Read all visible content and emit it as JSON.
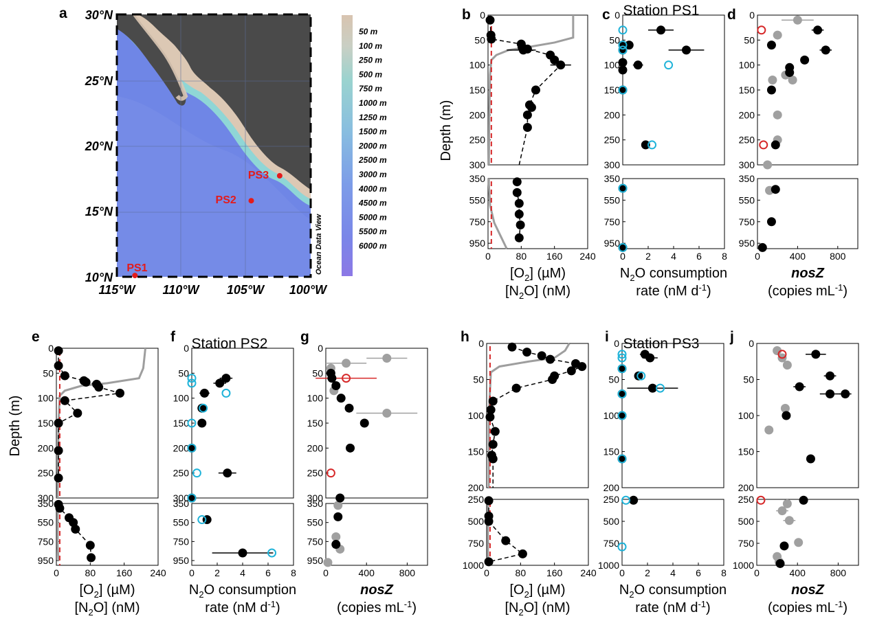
{
  "figure_labels": [
    "a",
    "b",
    "c",
    "d",
    "e",
    "f",
    "g",
    "h",
    "i",
    "j"
  ],
  "map": {
    "label": "a",
    "lat_ticks": [
      "30°N",
      "25°N",
      "20°N",
      "15°N",
      "10°N"
    ],
    "lon_ticks": [
      "115°W",
      "110°W",
      "105°W",
      "100°W"
    ],
    "watermark": "Ocean Data View",
    "stations": [
      {
        "name": "PS1",
        "lon": -113.6,
        "lat": 10.1
      },
      {
        "name": "PS2",
        "lon": -104.6,
        "lat": 15.8
      },
      {
        "name": "PS3",
        "lon": -102.4,
        "lat": 17.7
      }
    ],
    "colorbar_labels": [
      "50 m",
      "100 m",
      "250 m",
      "500 m",
      "750 m",
      "1000 m",
      "1250 m",
      "1500 m",
      "2000 m",
      "2500 m",
      "3000 m",
      "4000 m",
      "4500 m",
      "5000 m",
      "5500 m",
      "6000 m"
    ],
    "colors": {
      "land": "#4a4a4a",
      "shelf": "#dcc8b4",
      "deep": "#6f86e6",
      "mid": "#8aa4ec",
      "coast": "#8fd6d6"
    }
  },
  "stations_titles": [
    "Station PS1",
    "Station PS2",
    "Station PS3"
  ],
  "ylabel": "Depth (m)",
  "xlabels": {
    "o2": [
      "[O",
      "2",
      "] (µM)"
    ],
    "n2o": [
      "[N",
      "2",
      "O] (nM)"
    ],
    "rate": [
      "N",
      "2",
      "O consumption",
      "rate (nM d",
      "-1",
      ")"
    ],
    "nosz": [
      "nosZ",
      "(copies mL",
      "-1",
      ")"
    ]
  },
  "axes": {
    "o2_ticks": [
      "0",
      "80",
      "160",
      "240"
    ],
    "rate_ticks": [
      "0",
      "2",
      "4",
      "6",
      "8"
    ],
    "nosz_ticks": [
      "0",
      "400",
      "800"
    ],
    "depth_upper_ticks": [
      "0",
      "50",
      "100",
      "150",
      "200",
      "250",
      "300"
    ],
    "depth_lower_ticks": [
      "350",
      "550",
      "750",
      "950"
    ],
    "ps3_upper_ticks": [
      "0",
      "50",
      "100",
      "150",
      "200"
    ],
    "ps3_lower_ticks": [
      "250",
      "500",
      "750",
      "1000"
    ]
  },
  "colors": {
    "black": "#000000",
    "grey": "#a0a0a0",
    "red": "#d62728",
    "cyan": "#1fb3d9",
    "o2_line": "#9e9e9e"
  },
  "chart_data": [
    {
      "panel": "b",
      "type": "scatter",
      "station": "PS1",
      "variable": "N2O (nM), O2 (µM)",
      "xlim": [
        0,
        240
      ],
      "ylim_upper": [
        0,
        300
      ],
      "ylim_lower": [
        350,
        1000
      ],
      "n2o": [
        [
          5,
          10
        ],
        [
          7,
          40
        ],
        [
          8,
          48
        ],
        [
          80,
          58
        ],
        [
          82,
          64
        ],
        [
          85,
          70
        ],
        [
          95,
          68
        ],
        [
          150,
          80
        ],
        [
          160,
          90
        ],
        [
          175,
          100
        ],
        [
          115,
          150
        ],
        [
          100,
          180
        ],
        [
          105,
          185
        ],
        [
          95,
          200
        ],
        [
          95,
          225
        ],
        [
          70,
          380
        ],
        [
          70,
          480
        ],
        [
          75,
          580
        ],
        [
          75,
          680
        ],
        [
          78,
          780
        ],
        [
          75,
          900
        ]
      ],
      "n2o_err": [
        [
          80,
          70,
          35
        ],
        [
          175,
          100,
          25
        ]
      ],
      "n2o_lower": [
        [
          70,
          380
        ],
        [
          70,
          460
        ],
        [
          75,
          560
        ],
        [
          75,
          660
        ],
        [
          78,
          760
        ],
        [
          75,
          880
        ]
      ],
      "o2_upper": [
        [
          205,
          0
        ],
        [
          205,
          45
        ],
        [
          160,
          55
        ],
        [
          90,
          65
        ],
        [
          50,
          70
        ],
        [
          20,
          80
        ],
        [
          8,
          90
        ],
        [
          5,
          120
        ],
        [
          3,
          200
        ],
        [
          2,
          300
        ]
      ],
      "o2_lower": [
        [
          2,
          350
        ],
        [
          2,
          400
        ],
        [
          5,
          600
        ],
        [
          15,
          760
        ],
        [
          30,
          880
        ],
        [
          45,
          1000
        ]
      ],
      "dashed_red_x": 8
    },
    {
      "panel": "c",
      "type": "scatter",
      "station": "PS1",
      "xlim": [
        0,
        8
      ],
      "black": [
        [
          3.0,
          30,
          1.0
        ],
        [
          0.5,
          60,
          0.3
        ],
        [
          5.0,
          70,
          1.4
        ],
        [
          1.2,
          100,
          0.4
        ],
        [
          0,
          60,
          0
        ],
        [
          0,
          70,
          0
        ],
        [
          0,
          95,
          0
        ],
        [
          0,
          110,
          0
        ],
        [
          0,
          150,
          0
        ],
        [
          1.8,
          260,
          0.3
        ],
        [
          0,
          440,
          0
        ],
        [
          0,
          990,
          0
        ]
      ],
      "cyan_open": [
        [
          0,
          30
        ],
        [
          0,
          60
        ],
        [
          0,
          70
        ],
        [
          3.6,
          100
        ],
        [
          0,
          150
        ],
        [
          2.3,
          260
        ],
        [
          0,
          440
        ],
        [
          0,
          990
        ]
      ]
    },
    {
      "panel": "d",
      "type": "scatter",
      "station": "PS1",
      "xlim": [
        0,
        1000
      ],
      "black": [
        [
          600,
          30,
          60
        ],
        [
          680,
          70,
          60
        ],
        [
          470,
          90,
          0
        ],
        [
          320,
          105,
          0
        ],
        [
          320,
          115,
          0
        ],
        [
          140,
          60,
          0
        ],
        [
          140,
          150,
          0
        ],
        [
          180,
          260,
          0
        ],
        [
          180,
          450,
          0
        ],
        [
          140,
          750,
          0
        ],
        [
          50,
          990,
          0
        ]
      ],
      "grey": [
        [
          400,
          10,
          160
        ],
        [
          200,
          40,
          0
        ],
        [
          280,
          120,
          0
        ],
        [
          350,
          130,
          0
        ],
        [
          150,
          130,
          0
        ],
        [
          200,
          200,
          0
        ],
        [
          200,
          250,
          0
        ],
        [
          100,
          300,
          0
        ],
        [
          120,
          460,
          0
        ]
      ],
      "red_open": [
        [
          40,
          30
        ],
        [
          60,
          260
        ]
      ]
    },
    {
      "panel": "e",
      "type": "scatter",
      "station": "PS2",
      "xlim": [
        0,
        240
      ],
      "n2o": [
        [
          5,
          5
        ],
        [
          5,
          35
        ],
        [
          20,
          55
        ],
        [
          65,
          65
        ],
        [
          70,
          68
        ],
        [
          95,
          72
        ],
        [
          100,
          78
        ],
        [
          150,
          90
        ],
        [
          20,
          105
        ],
        [
          50,
          130
        ],
        [
          5,
          150
        ],
        [
          5,
          205
        ],
        [
          5,
          260
        ],
        [
          5,
          360
        ],
        [
          8,
          400
        ],
        [
          30,
          500
        ],
        [
          40,
          550
        ],
        [
          45,
          620
        ],
        [
          80,
          790
        ],
        [
          82,
          920
        ]
      ],
      "o2_upper": [
        [
          210,
          0
        ],
        [
          205,
          40
        ],
        [
          195,
          60
        ],
        [
          120,
          70
        ],
        [
          60,
          75
        ],
        [
          20,
          85
        ],
        [
          8,
          95
        ],
        [
          5,
          150
        ],
        [
          3,
          300
        ]
      ],
      "o2_lower": [
        [
          3,
          350
        ],
        [
          3,
          800
        ],
        [
          5,
          950
        ]
      ],
      "dashed_red_x": 8
    },
    {
      "panel": "f",
      "type": "scatter",
      "station": "PS2",
      "xlim": [
        0,
        8
      ],
      "black": [
        [
          2.7,
          60,
          0.5
        ],
        [
          2.2,
          70,
          0.5
        ],
        [
          1.0,
          90,
          0.4
        ],
        [
          0.8,
          120,
          0.3
        ],
        [
          0.8,
          150,
          0.3
        ],
        [
          0,
          200,
          0
        ],
        [
          2.8,
          250,
          0.7
        ],
        [
          0,
          300,
          0
        ],
        [
          1.2,
          520,
          0.3
        ],
        [
          4.0,
          870,
          2.4
        ]
      ],
      "cyan_open": [
        [
          0,
          60
        ],
        [
          0,
          70
        ],
        [
          2.7,
          90
        ],
        [
          0.9,
          120
        ],
        [
          0,
          150
        ],
        [
          0,
          200
        ],
        [
          0.4,
          250
        ],
        [
          0,
          300
        ],
        [
          0.8,
          520
        ],
        [
          6.3,
          870
        ]
      ]
    },
    {
      "panel": "g",
      "type": "scatter",
      "station": "PS2",
      "xlim": [
        0,
        1000
      ],
      "black": [
        [
          50,
          50,
          0
        ],
        [
          60,
          60,
          0
        ],
        [
          100,
          75,
          0
        ],
        [
          150,
          100,
          0
        ],
        [
          230,
          120,
          0
        ],
        [
          380,
          150,
          0
        ],
        [
          240,
          200,
          0
        ],
        [
          140,
          300,
          0
        ],
        [
          120,
          490,
          0
        ],
        [
          100,
          780,
          0
        ]
      ],
      "grey": [
        [
          600,
          20,
          200
        ],
        [
          200,
          30,
          200
        ],
        [
          600,
          130,
          300
        ],
        [
          50,
          40,
          0
        ],
        [
          80,
          85,
          0
        ],
        [
          120,
          370,
          0
        ],
        [
          100,
          700,
          0
        ],
        [
          140,
          830,
          0
        ],
        [
          20,
          970,
          0
        ]
      ],
      "red_open": [
        [
          200,
          60,
          300
        ],
        [
          50,
          250,
          0
        ]
      ]
    },
    {
      "panel": "h",
      "type": "scatter",
      "station": "PS3",
      "xlim": [
        0,
        240
      ],
      "ylim_upper": [
        0,
        200
      ],
      "ylim_lower": [
        250,
        1000
      ],
      "n2o": [
        [
          60,
          5
        ],
        [
          95,
          12
        ],
        [
          130,
          17
        ],
        [
          150,
          22
        ],
        [
          210,
          28
        ],
        [
          225,
          32
        ],
        [
          200,
          38
        ],
        [
          160,
          45
        ],
        [
          155,
          50
        ],
        [
          70,
          62
        ],
        [
          15,
          80
        ],
        [
          10,
          92
        ],
        [
          8,
          102
        ],
        [
          20,
          122
        ],
        [
          15,
          140
        ],
        [
          12,
          155
        ],
        [
          15,
          160
        ],
        [
          5,
          265
        ],
        [
          5,
          440
        ],
        [
          5,
          500
        ],
        [
          45,
          720
        ],
        [
          85,
          870
        ],
        [
          5,
          960
        ]
      ],
      "o2_upper": [
        [
          195,
          0
        ],
        [
          185,
          10
        ],
        [
          160,
          20
        ],
        [
          100,
          25
        ],
        [
          30,
          32
        ],
        [
          10,
          40
        ],
        [
          5,
          100
        ],
        [
          5,
          200
        ]
      ],
      "o2_lower": [
        [
          3,
          250
        ],
        [
          3,
          1000
        ]
      ],
      "dashed_red_x": 8
    },
    {
      "panel": "i",
      "type": "scatter",
      "station": "PS3",
      "xlim": [
        0,
        8
      ],
      "black": [
        [
          1.8,
          15,
          0.4
        ],
        [
          2.2,
          20,
          0.6
        ],
        [
          1.3,
          45,
          0.3
        ],
        [
          2.4,
          62,
          2.0
        ],
        [
          0,
          35,
          0
        ],
        [
          0,
          70,
          0
        ],
        [
          0,
          100,
          0
        ],
        [
          0,
          160,
          0
        ],
        [
          0.9,
          260,
          0
        ]
      ],
      "cyan_open": [
        [
          0,
          15
        ],
        [
          0,
          20
        ],
        [
          0,
          35
        ],
        [
          1.5,
          45
        ],
        [
          3.0,
          62
        ],
        [
          0,
          70
        ],
        [
          0,
          100
        ],
        [
          0,
          160
        ],
        [
          0.3,
          260
        ],
        [
          0,
          790
        ]
      ]
    },
    {
      "panel": "j",
      "type": "scatter",
      "station": "PS3",
      "xlim": [
        0,
        1000
      ],
      "black": [
        [
          580,
          15,
          100
        ],
        [
          720,
          45,
          60
        ],
        [
          420,
          60,
          60
        ],
        [
          720,
          70,
          100
        ],
        [
          870,
          70,
          60
        ],
        [
          290,
          100,
          0
        ],
        [
          530,
          160,
          0
        ],
        [
          460,
          260,
          0
        ],
        [
          270,
          780,
          0
        ],
        [
          230,
          980,
          0
        ]
      ],
      "grey": [
        [
          200,
          10,
          0
        ],
        [
          250,
          20,
          0
        ],
        [
          300,
          30,
          0
        ],
        [
          280,
          90,
          0
        ],
        [
          120,
          120,
          0
        ],
        [
          300,
          300,
          0
        ],
        [
          250,
          380,
          60
        ],
        [
          320,
          490,
          60
        ],
        [
          410,
          740,
          0
        ],
        [
          200,
          900,
          0
        ],
        [
          220,
          960,
          0
        ]
      ],
      "red_open": [
        [
          250,
          15
        ],
        [
          40,
          260
        ]
      ]
    }
  ]
}
